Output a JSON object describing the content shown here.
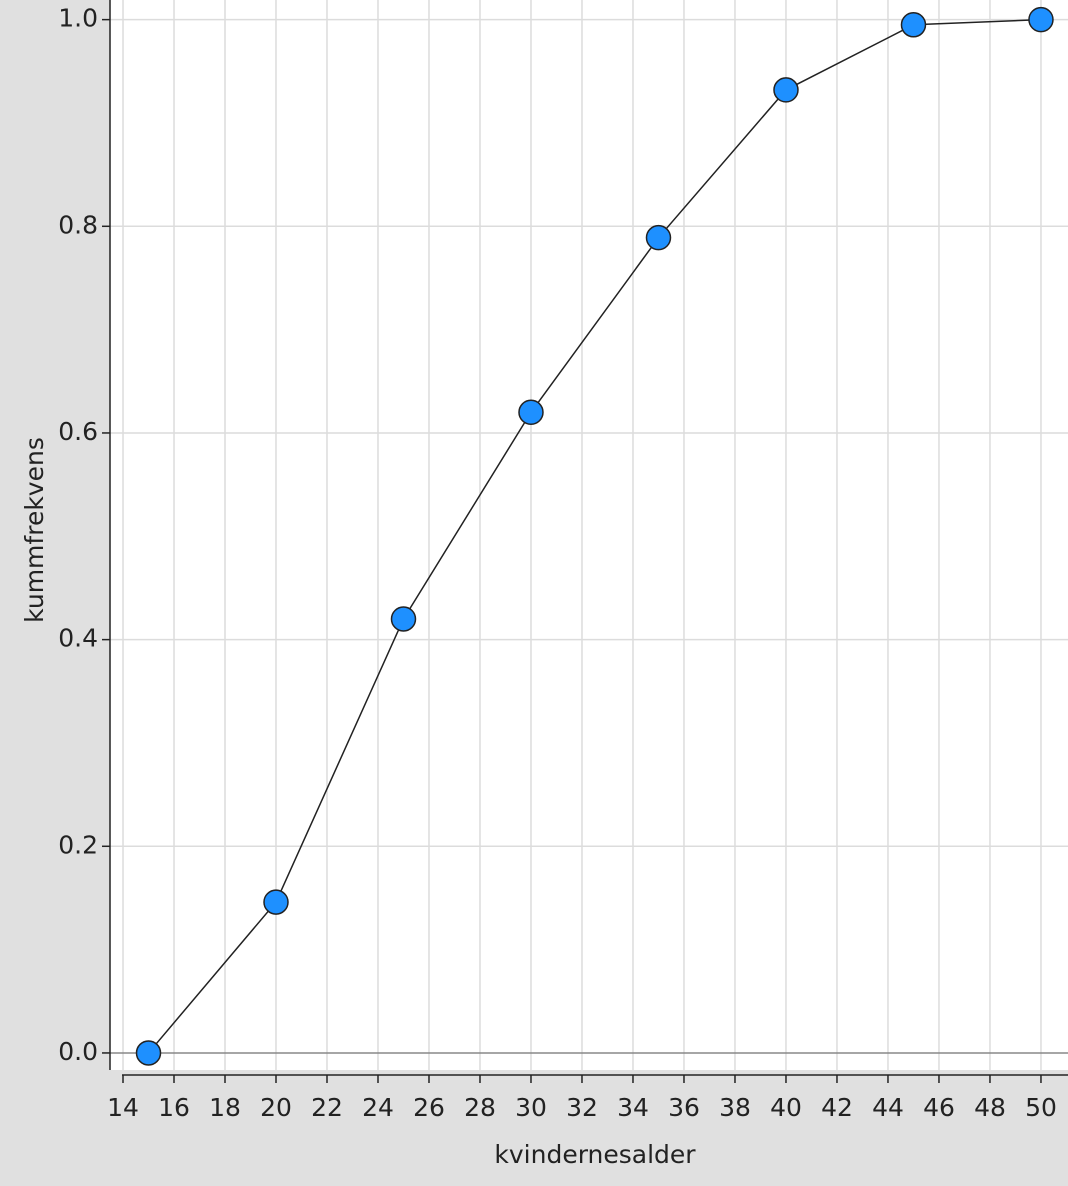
{
  "chart_data": {
    "type": "line",
    "x_label": "kvindernesalder",
    "y_label": "kummfrekvens",
    "x": [
      15,
      20,
      25,
      30,
      35,
      40,
      45,
      50
    ],
    "series": [
      {
        "color": "#1e90ff",
        "values": [
          0,
          0.146,
          0.42,
          0.62,
          0.789,
          0.932,
          0.995,
          1.0
        ]
      }
    ],
    "xlim": [
      13.49,
      51.06
    ],
    "ylim": [
      -0.0165,
      1.019
    ],
    "xticks": [
      14,
      16,
      18,
      20,
      22,
      24,
      26,
      28,
      30,
      32,
      34,
      36,
      38,
      40,
      42,
      44,
      46,
      48,
      50
    ],
    "yticks": [
      {
        "value": 0,
        "label": "0.0"
      },
      0.2,
      0.4,
      0.6,
      0.8,
      {
        "value": 1,
        "label": "1.0"
      }
    ],
    "grid": true
  }
}
